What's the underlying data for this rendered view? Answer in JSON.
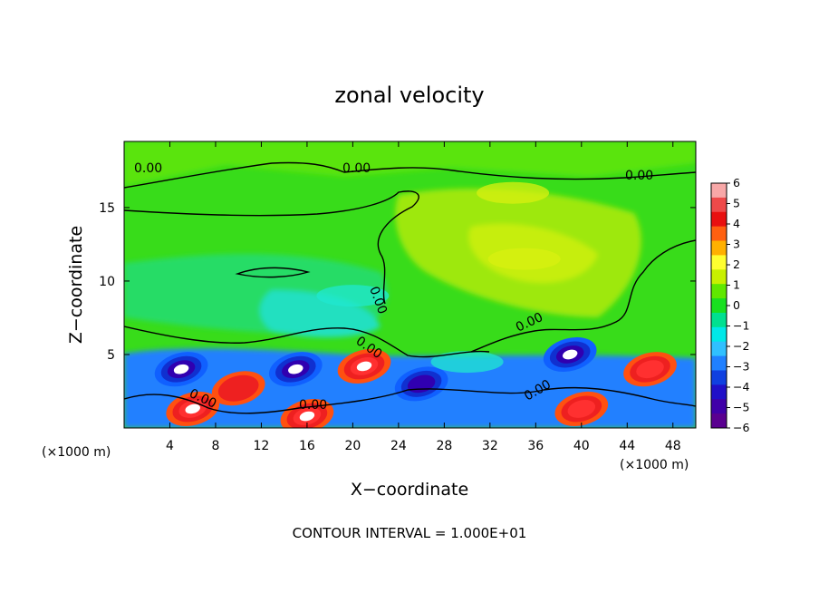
{
  "chart_data": {
    "type": "heatmap",
    "title": "zonal velocity",
    "xlabel": "X−coordinate",
    "ylabel": "Z−coordinate",
    "x_unit_left": "(×1000 m)",
    "x_unit_right": "(×1000 m)",
    "xlim": [
      0,
      50
    ],
    "ylim": [
      0,
      19.5
    ],
    "x_ticks": [
      4,
      8,
      12,
      16,
      20,
      24,
      28,
      32,
      36,
      40,
      44,
      48
    ],
    "x_tick_labels": [
      "4",
      "8",
      "12",
      "16",
      "20",
      "24",
      "28",
      "32",
      "36",
      "40",
      "44",
      "48"
    ],
    "y_ticks": [
      5,
      10,
      15
    ],
    "y_tick_labels": [
      "5",
      "10",
      "15"
    ],
    "colorbar": {
      "min": -6,
      "max": 6,
      "labels": [
        "6",
        "5",
        "4",
        "3",
        "2",
        "1",
        "0",
        "−1",
        "−2",
        "−3",
        "−4",
        "−5",
        "−6"
      ],
      "colors": [
        "#ffffff",
        "#f8a8a8",
        "#ee4a4a",
        "#e81010",
        "#ff6010",
        "#ffb000",
        "#ffff30",
        "#c8f000",
        "#60e800",
        "#18e020",
        "#00e090",
        "#00e8e8",
        "#30c0ff",
        "#2080ff",
        "#1040e0",
        "#2010c8",
        "#4000a8",
        "#5a0090",
        "#ffffff"
      ]
    },
    "contour_label": "0.00",
    "note": "CONTOUR INTERVAL = 1.000E+01",
    "features": [
      {
        "x": 5,
        "z": 4,
        "u": -6
      },
      {
        "x": 6,
        "z": 1.3,
        "u": 6
      },
      {
        "x": 10,
        "z": 2.7,
        "u": 3
      },
      {
        "x": 15,
        "z": 4,
        "u": -6
      },
      {
        "x": 16,
        "z": 0.8,
        "u": 6
      },
      {
        "x": 21,
        "z": 4.2,
        "u": 6
      },
      {
        "x": 26,
        "z": 3,
        "u": -4
      },
      {
        "x": 30,
        "z": 4.5,
        "u": -2
      },
      {
        "x": 39,
        "z": 5,
        "u": -6
      },
      {
        "x": 40,
        "z": 1.3,
        "u": 4
      },
      {
        "x": 46,
        "z": 4,
        "u": 4
      },
      {
        "x": 35,
        "z": 11.5,
        "u": 2
      },
      {
        "x": 34,
        "z": 16,
        "u": 1
      },
      {
        "x": 20,
        "z": 9,
        "u": -2
      }
    ]
  }
}
